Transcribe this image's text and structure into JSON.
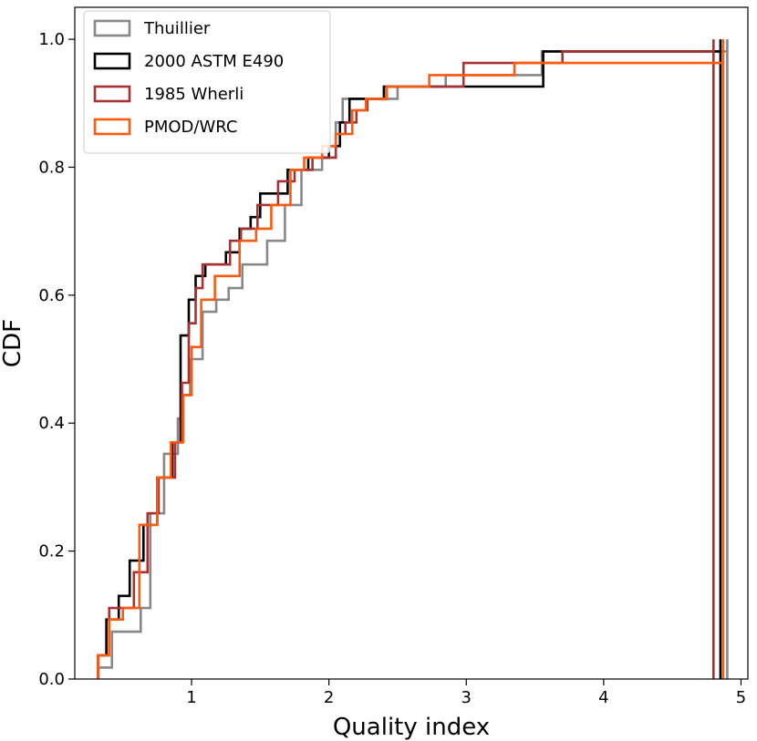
{
  "chart_data": {
    "type": "line",
    "subtype": "step-cdf",
    "title": "",
    "xlabel": "Quality index",
    "ylabel": "CDF",
    "xlim": [
      0.15,
      5.05
    ],
    "ylim": [
      0.0,
      1.05
    ],
    "xticks": [
      1,
      2,
      3,
      4,
      5
    ],
    "yticks": [
      0.0,
      0.2,
      0.4,
      0.6,
      0.8,
      1.0
    ],
    "xtick_labels": [
      "1",
      "2",
      "3",
      "4",
      "5"
    ],
    "ytick_labels": [
      "0.0",
      "0.2",
      "0.4",
      "0.6",
      "0.8",
      "1.0"
    ],
    "grid": false,
    "legend_position": "top-left",
    "series": [
      {
        "name": "Thuillier",
        "color": "#888888",
        "x": [
          0.32,
          0.42,
          0.63,
          0.7,
          0.8,
          0.9,
          0.93,
          0.99,
          1.08,
          1.18,
          1.27,
          1.37,
          1.55,
          1.68,
          1.8,
          1.95,
          2.05,
          2.1,
          2.2,
          2.3,
          2.5,
          2.75,
          2.85,
          3.2,
          3.55,
          3.6,
          4.9
        ],
        "y": [
          0.018,
          0.074,
          0.111,
          0.259,
          0.352,
          0.407,
          0.444,
          0.5,
          0.574,
          0.593,
          0.611,
          0.648,
          0.685,
          0.741,
          0.796,
          0.815,
          0.87,
          0.907,
          0.907,
          0.907,
          0.926,
          0.926,
          0.944,
          0.944,
          0.981,
          0.981,
          1.0
        ]
      },
      {
        "name": "2000 ASTM E490",
        "color": "#000000",
        "x": [
          0.32,
          0.38,
          0.47,
          0.55,
          0.65,
          0.75,
          0.86,
          0.92,
          0.98,
          1.03,
          1.1,
          1.25,
          1.35,
          1.43,
          1.5,
          1.6,
          1.7,
          1.85,
          2.0,
          2.08,
          2.15,
          2.25,
          2.4,
          3.56,
          3.63,
          4.85
        ],
        "y": [
          0.037,
          0.093,
          0.13,
          0.185,
          0.241,
          0.315,
          0.37,
          0.537,
          0.593,
          0.63,
          0.648,
          0.667,
          0.704,
          0.722,
          0.759,
          0.759,
          0.796,
          0.815,
          0.833,
          0.87,
          0.907,
          0.907,
          0.926,
          0.981,
          0.981,
          1.0
        ]
      },
      {
        "name": "1985 Wherli",
        "color": "#a83232",
        "x": [
          0.32,
          0.4,
          0.58,
          0.68,
          0.76,
          0.88,
          0.93,
          0.98,
          1.03,
          1.08,
          1.14,
          1.28,
          1.36,
          1.48,
          1.63,
          1.75,
          1.88,
          2.05,
          2.12,
          2.2,
          2.28,
          2.42,
          2.98,
          3.55,
          3.7,
          4.8
        ],
        "y": [
          0.037,
          0.111,
          0.167,
          0.259,
          0.315,
          0.37,
          0.463,
          0.556,
          0.611,
          0.648,
          0.648,
          0.685,
          0.704,
          0.741,
          0.778,
          0.796,
          0.815,
          0.852,
          0.87,
          0.889,
          0.907,
          0.926,
          0.963,
          0.963,
          0.981,
          1.0
        ]
      },
      {
        "name": "PMOD/WRC",
        "color": "#ff5a0e",
        "x": [
          0.32,
          0.4,
          0.5,
          0.62,
          0.75,
          0.85,
          0.94,
          1.0,
          1.07,
          1.17,
          1.35,
          1.47,
          1.58,
          1.72,
          1.82,
          1.95,
          2.05,
          2.17,
          2.27,
          2.42,
          2.73,
          3.35,
          4.87
        ],
        "y": [
          0.037,
          0.093,
          0.111,
          0.241,
          0.315,
          0.37,
          0.444,
          0.519,
          0.593,
          0.63,
          0.685,
          0.704,
          0.741,
          0.796,
          0.815,
          0.833,
          0.852,
          0.889,
          0.907,
          0.926,
          0.944,
          0.963,
          1.0
        ]
      }
    ]
  }
}
